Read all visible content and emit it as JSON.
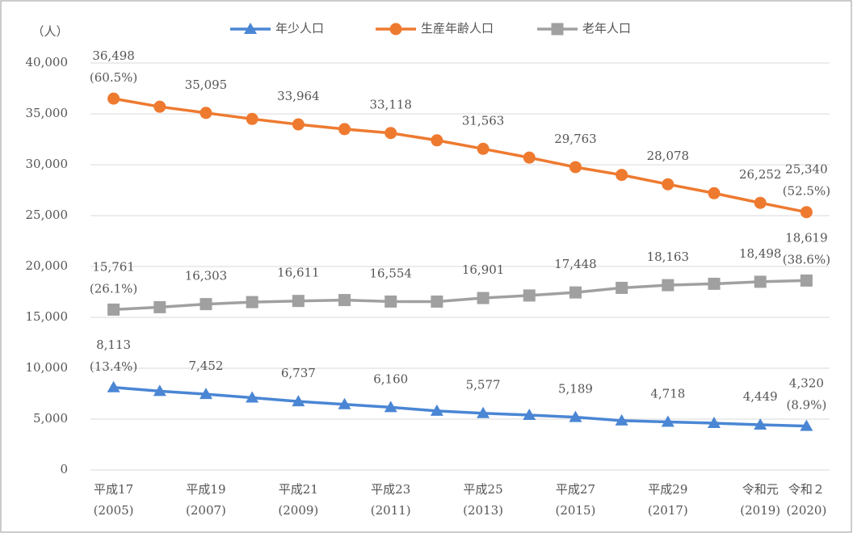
{
  "chart_data": {
    "type": "line",
    "y_unit_label": "（人）",
    "categories": [
      [
        "平成17",
        "(2005)"
      ],
      null,
      [
        "平成19",
        "(2007)"
      ],
      null,
      [
        "平成21",
        "(2009)"
      ],
      null,
      [
        "平成23",
        "(2011)"
      ],
      null,
      [
        "平成25",
        "(2013)"
      ],
      null,
      [
        "平成27",
        "(2015)"
      ],
      null,
      [
        "平成29",
        "(2017)"
      ],
      null,
      [
        "令和元",
        "(2019)"
      ],
      [
        "令和２",
        "(2020)"
      ]
    ],
    "ylim": [
      0,
      40000
    ],
    "yticks": [
      0,
      {
        "value": 5000,
        "label": "5,000"
      },
      {
        "value": 10000,
        "label": "10,000"
      },
      {
        "value": 15000,
        "label": "15,000"
      },
      {
        "value": 20000,
        "label": "20,000"
      },
      {
        "value": 25000,
        "label": "25,000"
      },
      {
        "value": 30000,
        "label": "30,000"
      },
      {
        "value": 35000,
        "label": "35,000"
      },
      {
        "value": 40000,
        "label": "40,000"
      }
    ],
    "grid": true,
    "legend": "top",
    "series": [
      {
        "name": "年少人口",
        "color": "#4a86d4",
        "marker": "triangle",
        "values": [
          8113,
          7750,
          7452,
          7100,
          6737,
          6450,
          6160,
          5800,
          5577,
          5400,
          5189,
          4850,
          4718,
          4600,
          4449,
          4320
        ],
        "value_labels": [
          "8,113",
          null,
          "7,452",
          null,
          "6,737",
          null,
          "6,160",
          null,
          "5,577",
          null,
          "5,189",
          null,
          "4,718",
          null,
          "4,449",
          "4,320"
        ],
        "share_labels": [
          "(13.4%)",
          null,
          null,
          null,
          null,
          null,
          null,
          null,
          null,
          null,
          null,
          null,
          null,
          null,
          null,
          "(8.9%)"
        ]
      },
      {
        "name": "生産年齢人口",
        "color": "#ee7a30",
        "marker": "circle",
        "values": [
          36498,
          35700,
          35095,
          34500,
          33964,
          33500,
          33118,
          32400,
          31563,
          30700,
          29763,
          29000,
          28078,
          27200,
          26252,
          25340
        ],
        "value_labels": [
          "36,498",
          null,
          "35,095",
          null,
          "33,964",
          null,
          "33,118",
          null,
          "31,563",
          null,
          "29,763",
          null,
          "28,078",
          null,
          "26,252",
          "25,340"
        ],
        "share_labels": [
          "(60.5%)",
          null,
          null,
          null,
          null,
          null,
          null,
          null,
          null,
          null,
          null,
          null,
          null,
          null,
          null,
          "(52.5%)"
        ]
      },
      {
        "name": "老年人口",
        "color": "#a0a0a0",
        "marker": "square",
        "values": [
          15761,
          16000,
          16303,
          16500,
          16611,
          16700,
          16554,
          16550,
          16901,
          17150,
          17448,
          17900,
          18163,
          18300,
          18498,
          18619
        ],
        "value_labels": [
          "15,761",
          null,
          "16,303",
          null,
          "16,611",
          null,
          "16,554",
          null,
          "16,901",
          null,
          "17,448",
          null,
          "18,163",
          null,
          "18,498",
          "18,619"
        ],
        "share_labels": [
          "(26.1%)",
          null,
          null,
          null,
          null,
          null,
          null,
          null,
          null,
          null,
          null,
          null,
          null,
          null,
          null,
          "(38.6%)"
        ]
      }
    ]
  }
}
